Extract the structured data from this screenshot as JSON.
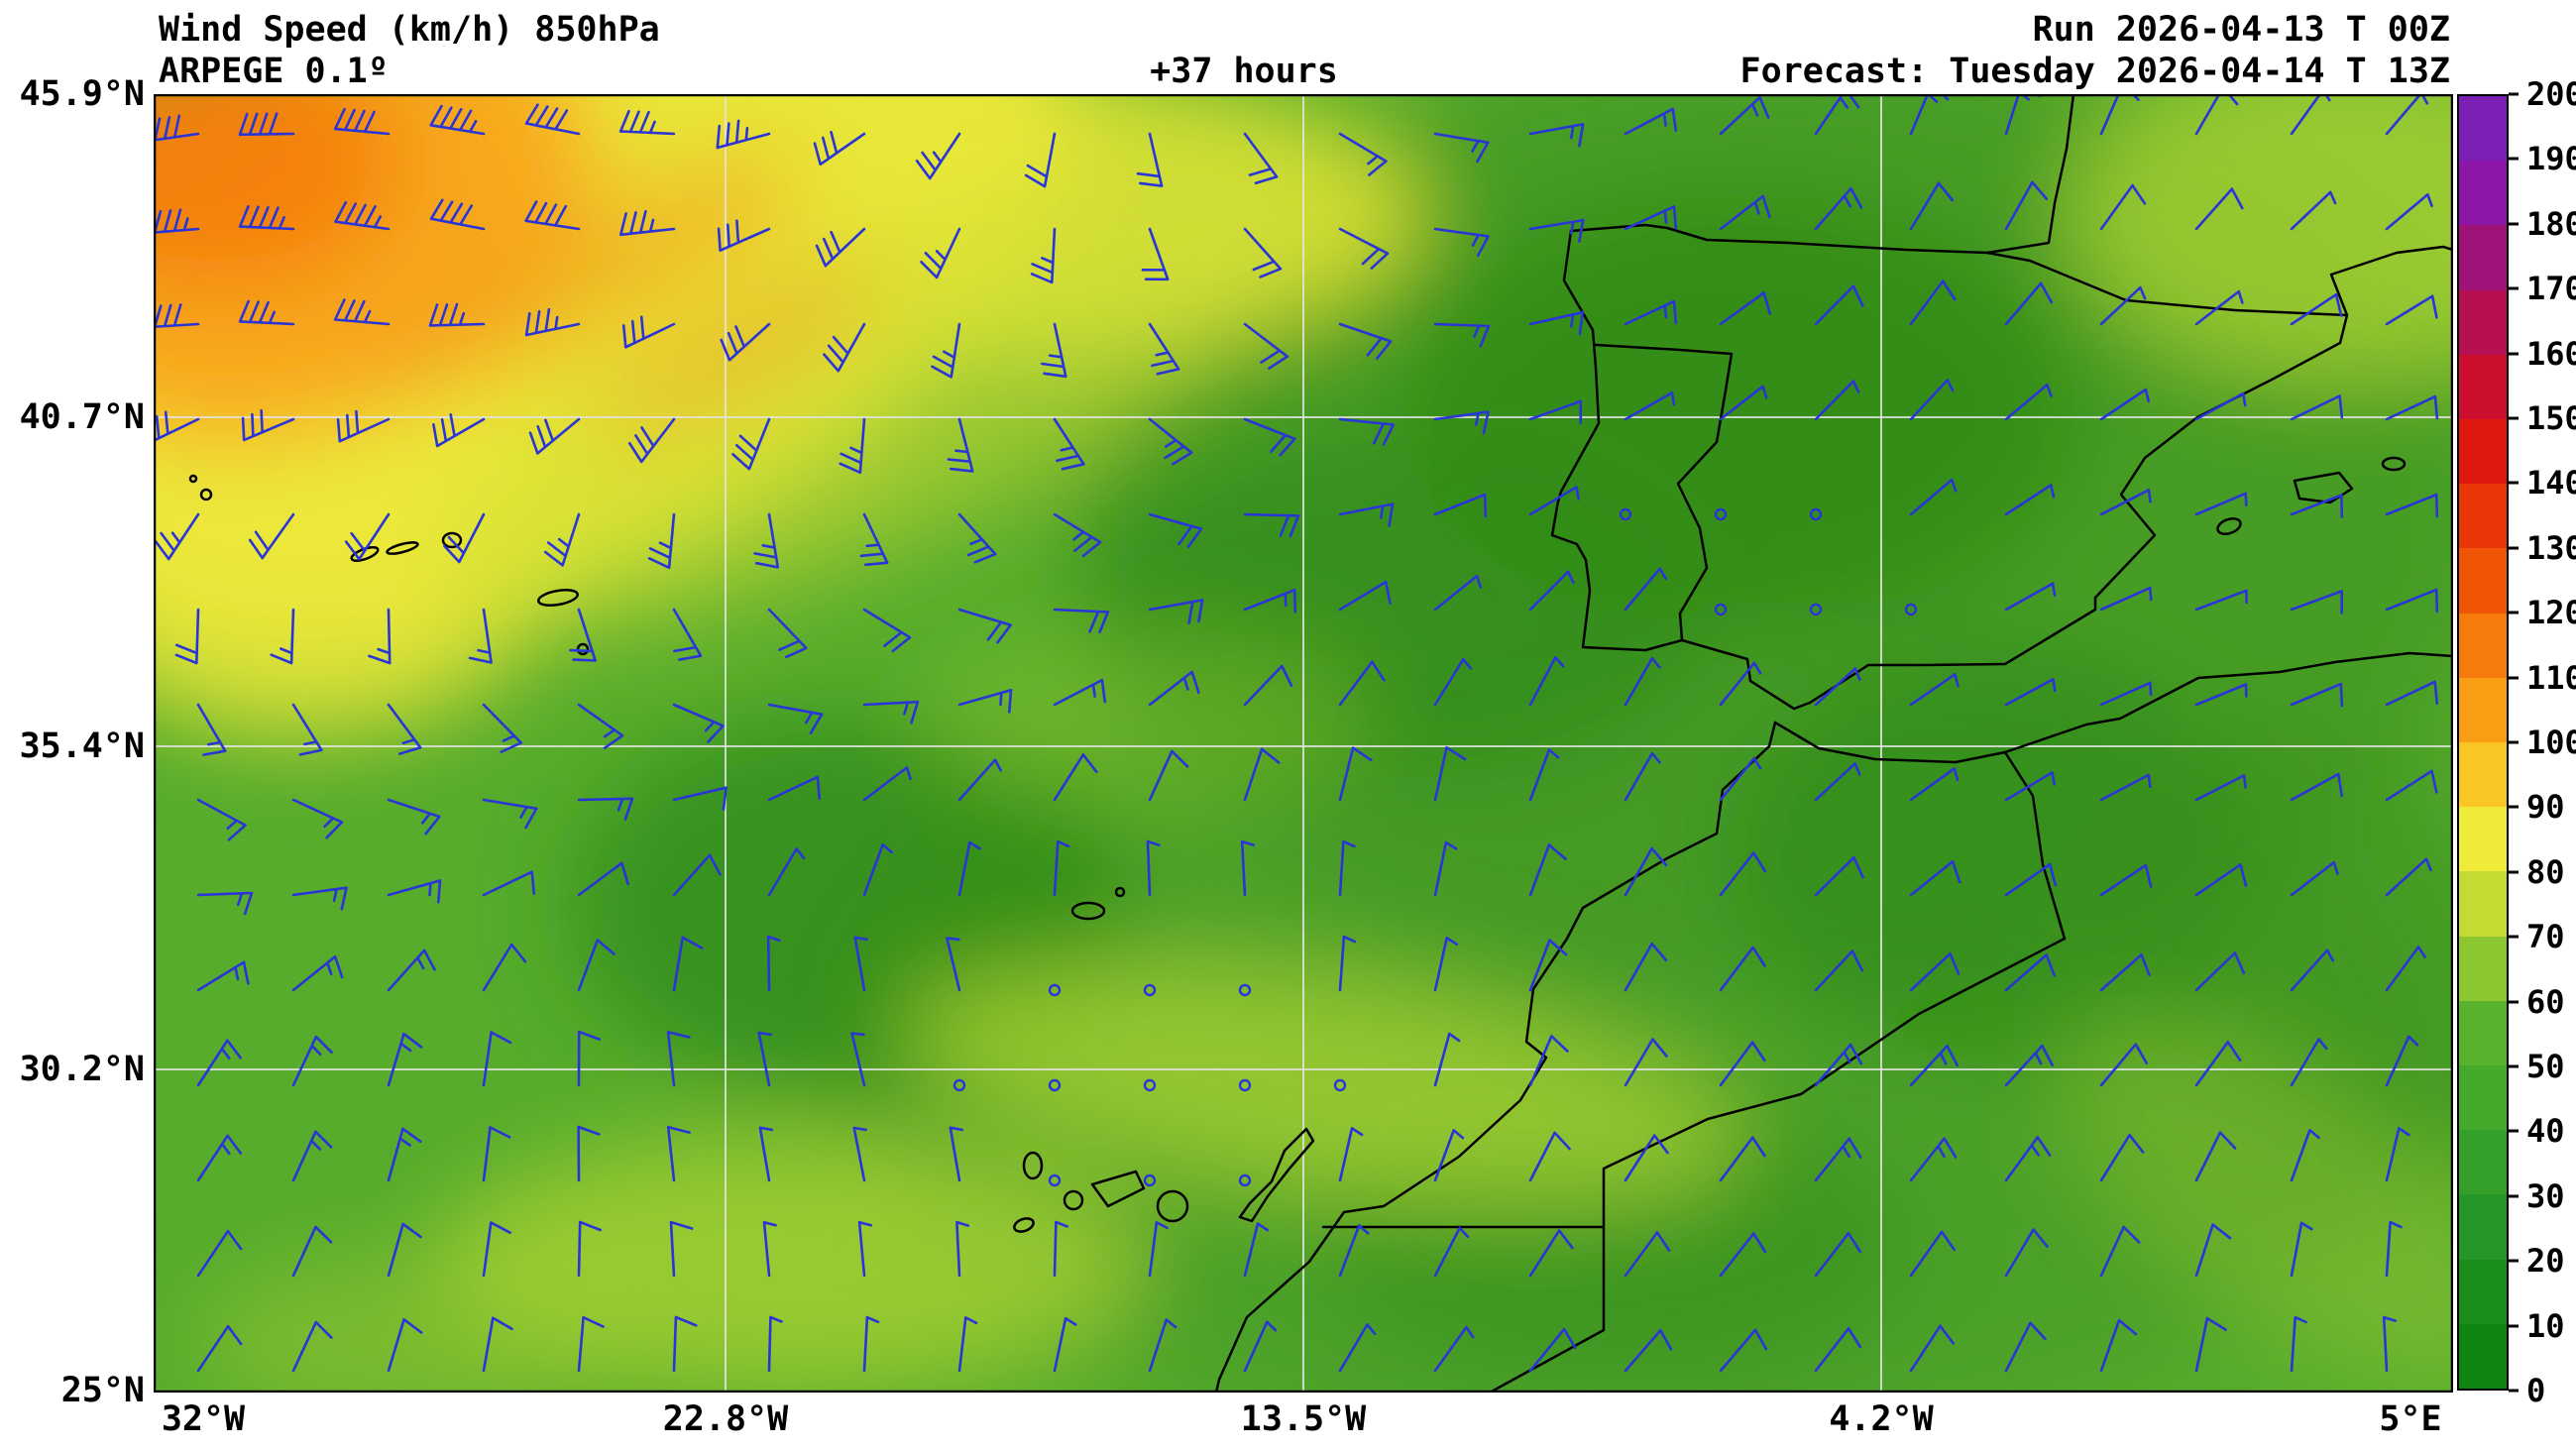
{
  "header": {
    "title_line1": "Wind Speed (km/h) 850hPa",
    "model": "ARPEGE 0.1º",
    "lead_time": "+37 hours",
    "run": "Run 2026-04-13 T 00Z",
    "forecast": "Forecast: Tuesday 2026-04-14 T 13Z"
  },
  "chart_data": {
    "type": "heatmap",
    "title": "Wind Speed (km/h) 850hPa",
    "model": "ARPEGE 0.1º",
    "level": "850hPa",
    "units": "km/h",
    "lead_time_hours": 37,
    "run": "2026-04-13 T 00Z",
    "valid": "Tuesday 2026-04-14 T 13Z",
    "lon_range_deg": [
      -32,
      5
    ],
    "lat_range_deg": [
      25,
      45.9
    ],
    "lat_ticks": [
      "45.9°N",
      "40.7°N",
      "35.4°N",
      "30.2°N",
      "25°N"
    ],
    "lon_ticks": [
      "32°W",
      "22.8°W",
      "13.5°W",
      "4.2°W",
      "5°E"
    ],
    "grid": true,
    "barb_color": "#2a35d8",
    "coastline_color": "#000000",
    "colorbar": {
      "position": "right",
      "min": 0,
      "max": 200,
      "step": 10,
      "tick_labels": [
        "0",
        "10",
        "20",
        "30",
        "40",
        "50",
        "60",
        "70",
        "80",
        "90",
        "100",
        "110",
        "120",
        "130",
        "140",
        "150",
        "160",
        "170",
        "180",
        "190",
        "200"
      ],
      "colors_low_to_high": [
        "#0f840f",
        "#1a8d1a",
        "#269726",
        "#34a02a",
        "#44aa2c",
        "#57b32e",
        "#8cc731",
        "#c6da34",
        "#f0ea39",
        "#f9c623",
        "#f99d14",
        "#f67a0c",
        "#f05506",
        "#e93606",
        "#de1a0e",
        "#cc0f2e",
        "#b61053",
        "#9d1378",
        "#8c16a8",
        "#7d1fb5"
      ]
    },
    "field_regions": [
      {
        "area": "far northwest corner",
        "wind_speed_kmh": "80-100"
      },
      {
        "area": "northwest diagonal band (yellow)",
        "wind_speed_kmh": "60-80"
      },
      {
        "area": "Iberian Peninsula and nearby Atlantic",
        "wind_speed_kmh": "10-40"
      },
      {
        "area": "central Atlantic / Canary Islands",
        "wind_speed_kmh": "20-50"
      },
      {
        "area": "Morocco coastal band",
        "wind_speed_kmh": "40-60"
      },
      {
        "area": "Mediterranean / Algeria",
        "wind_speed_kmh": "10-40"
      }
    ]
  }
}
